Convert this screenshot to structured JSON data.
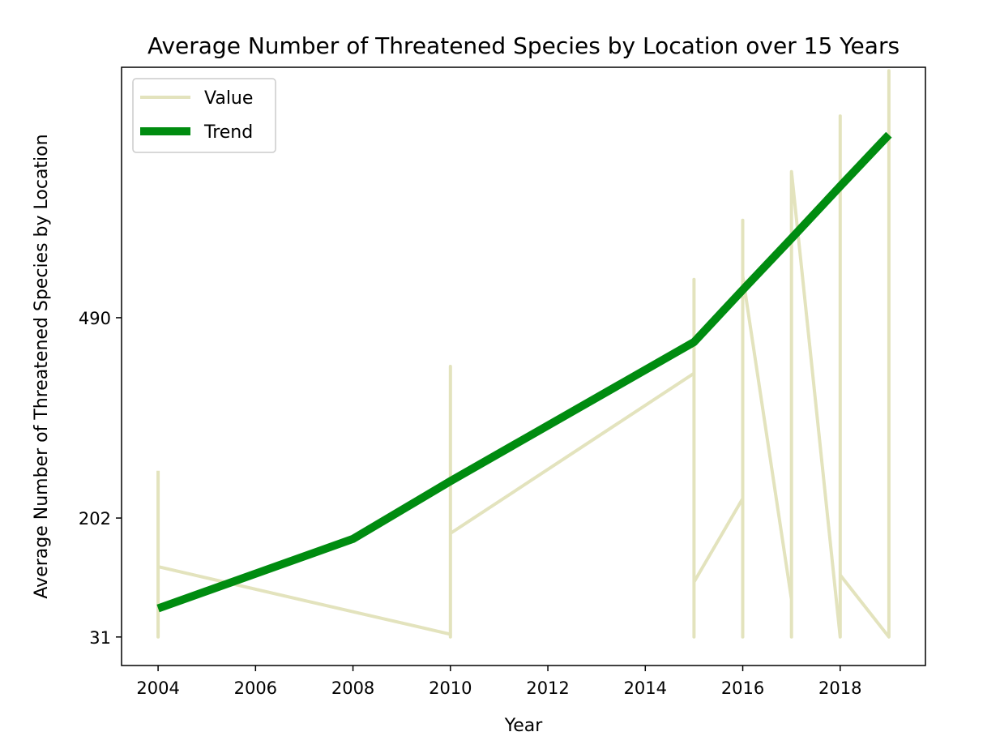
{
  "chart_data": {
    "type": "line",
    "title": "Average Number of Threatened Species by Location over 15 Years",
    "xlabel": "Year",
    "ylabel": "Average Number of Threatened Species by Location",
    "xlim": [
      2003.25,
      2019.75
    ],
    "ylim": [
      -10,
      850
    ],
    "x_ticks": [
      2004,
      2006,
      2008,
      2010,
      2012,
      2014,
      2016,
      2018
    ],
    "y_ticks": [
      31,
      202,
      490
    ],
    "grid": false,
    "legend_position": "top-left",
    "series": [
      {
        "name": "Value",
        "color": "#e3e3bd",
        "points": [
          {
            "x": 2004,
            "y": 270
          },
          {
            "x": 2004,
            "y": 31
          },
          {
            "x": 2004,
            "y": 132
          },
          {
            "x": 2010,
            "y": 35
          },
          {
            "x": 2010,
            "y": 31
          },
          {
            "x": 2010,
            "y": 420
          },
          {
            "x": 2010,
            "y": 180
          },
          {
            "x": 2015,
            "y": 410
          },
          {
            "x": 2015,
            "y": 545
          },
          {
            "x": 2015,
            "y": 31
          },
          {
            "x": 2015,
            "y": 110
          },
          {
            "x": 2016,
            "y": 230
          },
          {
            "x": 2016,
            "y": 31
          },
          {
            "x": 2016,
            "y": 630
          },
          {
            "x": 2016,
            "y": 550
          },
          {
            "x": 2017,
            "y": 85
          },
          {
            "x": 2017,
            "y": 31
          },
          {
            "x": 2017,
            "y": 700
          },
          {
            "x": 2018,
            "y": 31
          },
          {
            "x": 2018,
            "y": 780
          },
          {
            "x": 2018,
            "y": 120
          },
          {
            "x": 2019,
            "y": 31
          },
          {
            "x": 2019,
            "y": 845
          },
          {
            "x": 2019,
            "y": 610
          }
        ]
      },
      {
        "name": "Trend",
        "color": "#008c10",
        "points": [
          {
            "x": 2004,
            "y": 72
          },
          {
            "x": 2008,
            "y": 172
          },
          {
            "x": 2010,
            "y": 255
          },
          {
            "x": 2015,
            "y": 455
          },
          {
            "x": 2016,
            "y": 530
          },
          {
            "x": 2017,
            "y": 604
          },
          {
            "x": 2018,
            "y": 679
          },
          {
            "x": 2019,
            "y": 753
          }
        ]
      }
    ]
  }
}
